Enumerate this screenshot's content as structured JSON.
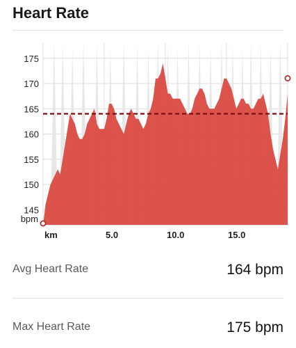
{
  "header": {
    "title": "Heart Rate"
  },
  "stats": [
    {
      "label": "Avg Heart Rate",
      "value": "164 bpm"
    },
    {
      "label": "Max Heart Rate",
      "value": "175 bpm"
    }
  ],
  "colors": {
    "fill": "#d9463e",
    "spike": "#e7e7e7",
    "avg_line": "#7a0f0f",
    "grid": "#dcdcdc",
    "marker": "#b33030"
  },
  "chart_data": {
    "type": "area",
    "title": "",
    "xlabel": "",
    "ylabel": "bpm",
    "x_unit_label": "km",
    "xlim": [
      0,
      20
    ],
    "ylim": [
      142,
      178
    ],
    "yticks": [
      145,
      150,
      155,
      160,
      165,
      170,
      175
    ],
    "xticks": [
      5,
      10,
      15
    ],
    "xtick_labels": [
      "5.0",
      "10.0",
      "15.0"
    ],
    "grid": true,
    "average": 164,
    "series": [
      {
        "x": [
          0,
          0.2,
          0.4,
          0.6,
          0.8,
          1.0,
          1.2,
          1.4,
          1.6,
          1.8,
          2.0,
          2.2,
          2.4,
          2.6,
          2.8,
          3.0,
          3.2,
          3.4,
          3.6,
          3.8,
          4.0,
          4.2,
          4.4,
          4.6,
          4.8,
          5.0,
          5.2,
          5.4,
          5.6,
          5.8,
          6.0,
          6.2,
          6.4,
          6.6,
          6.8,
          7.0,
          7.2,
          7.4,
          7.6,
          7.8,
          8.0,
          8.2,
          8.4,
          8.6,
          8.8,
          9.0,
          9.2,
          9.4,
          9.6,
          9.8,
          10.0,
          10.2,
          10.4,
          10.6,
          10.8,
          11.0,
          11.2,
          11.4,
          11.6,
          11.8,
          12.0,
          12.2,
          12.4,
          12.6,
          12.8,
          13.0,
          13.2,
          13.4,
          13.6,
          13.8,
          14.0,
          14.2,
          14.4,
          14.6,
          14.8,
          15.0,
          15.2,
          15.4,
          15.6,
          15.8,
          16.0,
          16.2,
          16.4,
          16.6,
          16.8,
          17.0,
          17.2,
          17.4,
          17.6,
          17.8,
          18.0,
          18.2,
          18.4,
          18.6,
          18.8,
          19.0,
          19.2,
          19.4,
          19.6,
          19.8,
          20.0
        ],
        "values": [
          142,
          146,
          148,
          150,
          151,
          152,
          153,
          152,
          155,
          158,
          161,
          164,
          163,
          162,
          160,
          159,
          159,
          160,
          162,
          163,
          164,
          165,
          162,
          161,
          161,
          161,
          163,
          166,
          166,
          165,
          163,
          162,
          161,
          160,
          162,
          164,
          165,
          164,
          163,
          163,
          162,
          161,
          162,
          164,
          165,
          167,
          171,
          171,
          172,
          174,
          171,
          168,
          168,
          167,
          167,
          167,
          167,
          166,
          165,
          164,
          164,
          165,
          167,
          168,
          169,
          169,
          168,
          166,
          165,
          165,
          165,
          166,
          167,
          169,
          171,
          171,
          170,
          169,
          167,
          165,
          166,
          167,
          167,
          166,
          166,
          165,
          165,
          166,
          167,
          167,
          168,
          166,
          164,
          160,
          157,
          155,
          153,
          156,
          159,
          163,
          168
        ]
      }
    ]
  }
}
